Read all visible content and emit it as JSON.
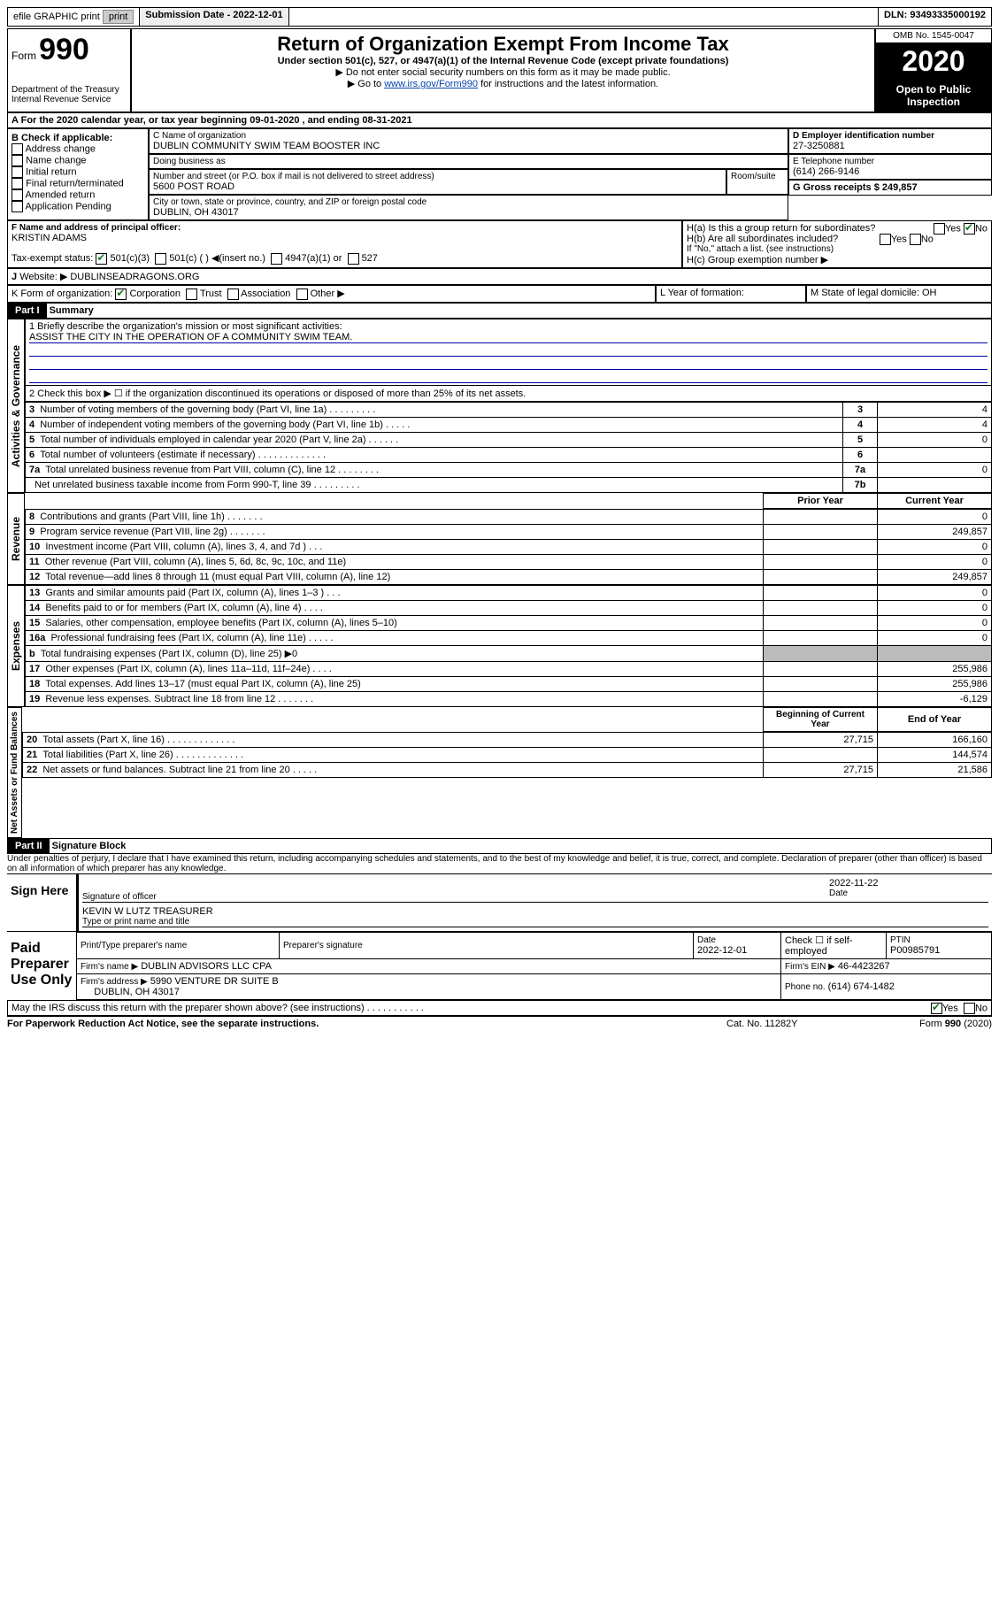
{
  "topbar": {
    "efile": "efile GRAPHIC print",
    "submission_label": "Submission Date - 2022-12-01",
    "dln": "DLN: 93493335000192"
  },
  "header": {
    "form_label": "Form",
    "form_num": "990",
    "dept": "Department of the Treasury",
    "irs": "Internal Revenue Service",
    "title": "Return of Organization Exempt From Income Tax",
    "subtitle": "Under section 501(c), 527, or 4947(a)(1) of the Internal Revenue Code (except private foundations)",
    "note1": "▶ Do not enter social security numbers on this form as it may be made public.",
    "note2_pre": "▶ Go to ",
    "note2_link": "www.irs.gov/Form990",
    "note2_post": " for instructions and the latest information.",
    "omb": "OMB No. 1545-0047",
    "year": "2020",
    "inspect1": "Open to Public",
    "inspect2": "Inspection"
  },
  "period": "For the 2020 calendar year, or tax year beginning 09-01-2020   , and ending 08-31-2021",
  "checkB": {
    "title": "B Check if applicable:",
    "items": [
      "Address change",
      "Name change",
      "Initial return",
      "Final return/terminated",
      "Amended return",
      "Application Pending"
    ]
  },
  "blockC": {
    "label": "C Name of organization",
    "name": "DUBLIN COMMUNITY SWIM TEAM BOOSTER INC",
    "dba_label": "Doing business as",
    "addr_label": "Number and street (or P.O. box if mail is not delivered to street address)",
    "room_label": "Room/suite",
    "addr": "5600 POST ROAD",
    "city_label": "City or town, state or province, country, and ZIP or foreign postal code",
    "city": "DUBLIN, OH  43017"
  },
  "blockD": {
    "label": "D Employer identification number",
    "ein": "27-3250881"
  },
  "blockE": {
    "label": "E Telephone number",
    "phone": "(614) 266-9146"
  },
  "blockG": {
    "label": "G Gross receipts $ 249,857"
  },
  "blockF": {
    "label": "F  Name and address of principal officer:",
    "name": "KRISTIN ADAMS"
  },
  "blockH": {
    "a": "H(a)  Is this a group return for subordinates?",
    "b": "H(b)  Are all subordinates included?",
    "note": "If \"No,\" attach a list. (see instructions)",
    "c": "H(c)  Group exemption number ▶",
    "yes": "Yes",
    "no": "No"
  },
  "taxexempt": {
    "label": "Tax-exempt status:",
    "o1": "501(c)(3)",
    "o2": "501(c) (  ) ◀(insert no.)",
    "o3": "4947(a)(1) or",
    "o4": "527"
  },
  "website": {
    "label": "Website: ▶",
    "url": "DUBLINSEADRAGONS.ORG"
  },
  "formOrg": {
    "label": "K Form of organization:",
    "o1": "Corporation",
    "o2": "Trust",
    "o3": "Association",
    "o4": "Other ▶",
    "L": "L Year of formation:",
    "M": "M State of legal domicile: OH"
  },
  "part1": {
    "header": "Part I",
    "title": "Summary",
    "q1": "1  Briefly describe the organization's mission or most significant activities:",
    "mission": "ASSIST THE CITY IN THE OPERATION OF A COMMUNITY SWIM TEAM.",
    "q2": "2   Check this box ▶ ☐  if the organization discontinued its operations or disposed of more than 25% of its net assets.",
    "rows_gov": [
      {
        "n": "3",
        "t": "Number of voting members of the governing body (Part VI, line 1a)   .    .    .    .    .    .    .    .    .",
        "rn": "3",
        "v": "4"
      },
      {
        "n": "4",
        "t": "Number of independent voting members of the governing body (Part VI, line 1b)   .    .    .    .    .",
        "rn": "4",
        "v": "4"
      },
      {
        "n": "5",
        "t": "Total number of individuals employed in calendar year 2020 (Part V, line 2a)   .    .    .    .    .    .",
        "rn": "5",
        "v": "0"
      },
      {
        "n": "6",
        "t": "Total number of volunteers (estimate if necessary)   .    .    .    .    .    .    .    .    .    .    .    .    .",
        "rn": "6",
        "v": ""
      },
      {
        "n": "7a",
        "t": "Total unrelated business revenue from Part VIII, column (C), line 12   .    .    .    .    .    .    .    .",
        "rn": "7a",
        "v": "0"
      },
      {
        "n": "",
        "t": "Net unrelated business taxable income from Form 990-T, line 39    .    .    .    .    .    .    .    .    .",
        "rn": "7b",
        "v": ""
      }
    ],
    "col_prior": "Prior Year",
    "col_cur": "Current Year",
    "rows_rev": [
      {
        "n": "8",
        "t": "Contributions and grants (Part VIII, line 1h)   .    .    .    .    .    .    .",
        "p": "",
        "c": "0"
      },
      {
        "n": "9",
        "t": "Program service revenue (Part VIII, line 2g)   .    .    .    .    .    .    .",
        "p": "",
        "c": "249,857"
      },
      {
        "n": "10",
        "t": "Investment income (Part VIII, column (A), lines 3, 4, and 7d )   .    .    .",
        "p": "",
        "c": "0"
      },
      {
        "n": "11",
        "t": "Other revenue (Part VIII, column (A), lines 5, 6d, 8c, 9c, 10c, and 11e)",
        "p": "",
        "c": "0"
      },
      {
        "n": "12",
        "t": "Total revenue—add lines 8 through 11 (must equal Part VIII, column (A), line 12)",
        "p": "",
        "c": "249,857"
      }
    ],
    "rows_exp": [
      {
        "n": "13",
        "t": "Grants and similar amounts paid (Part IX, column (A), lines 1–3 )   .    .    .",
        "p": "",
        "c": "0"
      },
      {
        "n": "14",
        "t": "Benefits paid to or for members (Part IX, column (A), line 4)   .    .    .    .",
        "p": "",
        "c": "0"
      },
      {
        "n": "15",
        "t": "Salaries, other compensation, employee benefits (Part IX, column (A), lines 5–10)",
        "p": "",
        "c": "0"
      },
      {
        "n": "16a",
        "t": "Professional fundraising fees (Part IX, column (A), line 11e)   .    .    .    .    .",
        "p": "",
        "c": "0"
      },
      {
        "n": "b",
        "t": "Total fundraising expenses (Part IX, column (D), line 25) ▶0",
        "p": "grey",
        "c": "grey"
      },
      {
        "n": "17",
        "t": "Other expenses (Part IX, column (A), lines 11a–11d, 11f–24e)   .    .    .    .",
        "p": "",
        "c": "255,986"
      },
      {
        "n": "18",
        "t": "Total expenses. Add lines 13–17 (must equal Part IX, column (A), line 25)",
        "p": "",
        "c": "255,986"
      },
      {
        "n": "19",
        "t": "Revenue less expenses. Subtract line 18 from line 12   .    .    .    .    .    .    .",
        "p": "",
        "c": "-6,129"
      }
    ],
    "col_boy": "Beginning of Current Year",
    "col_eoy": "End of Year",
    "rows_na": [
      {
        "n": "20",
        "t": "Total assets (Part X, line 16)   .    .    .    .    .    .    .    .    .    .    .    .    .",
        "p": "27,715",
        "c": "166,160"
      },
      {
        "n": "21",
        "t": "Total liabilities (Part X, line 26)  .    .    .    .    .    .    .    .    .    .    .    .    .",
        "p": "",
        "c": "144,574"
      },
      {
        "n": "22",
        "t": "Net assets or fund balances. Subtract line 21 from line 20   .    .    .    .    .",
        "p": "27,715",
        "c": "21,586"
      }
    ]
  },
  "vert": {
    "ag": "Activities & Governance",
    "rev": "Revenue",
    "exp": "Expenses",
    "na": "Net Assets or Fund Balances"
  },
  "part2": {
    "header": "Part II",
    "title": "Signature Block",
    "decl": "Under penalties of perjury, I declare that I have examined this return, including accompanying schedules and statements, and to the best of my knowledge and belief, it is true, correct, and complete. Declaration of preparer (other than officer) is based on all information of which preparer has any knowledge.",
    "sign_here": "Sign Here",
    "sig_officer": "Signature of officer",
    "date": "Date",
    "sig_date": "2022-11-22",
    "name_title": "KEVIN W LUTZ  TREASURER",
    "type_label": "Type or print name and title",
    "paid": "Paid Preparer Use Only",
    "prep_name_label": "Print/Type preparer's name",
    "prep_sig_label": "Preparer's signature",
    "prep_date_label": "Date",
    "prep_date": "2022-12-01",
    "check_self": "Check ☐ if self-employed",
    "ptin_label": "PTIN",
    "ptin": "P00985791",
    "firm_name_label": "Firm's name    ▶",
    "firm_name": "DUBLIN ADVISORS LLC CPA",
    "firm_ein_label": "Firm's EIN ▶",
    "firm_ein": "46-4423267",
    "firm_addr_label": "Firm's address ▶",
    "firm_addr1": "5990 VENTURE DR SUITE B",
    "firm_addr2": "DUBLIN, OH  43017",
    "phone_label": "Phone no.",
    "phone": "(614) 674-1482",
    "discuss": "May the IRS discuss this return with the preparer shown above? (see instructions)   .    .    .    .    .    .    .    .    .    .    .",
    "yes": "Yes",
    "no": "No"
  },
  "footer": {
    "left": "For Paperwork Reduction Act Notice, see the separate instructions.",
    "mid": "Cat. No. 11282Y",
    "right": "Form 990 (2020)"
  }
}
